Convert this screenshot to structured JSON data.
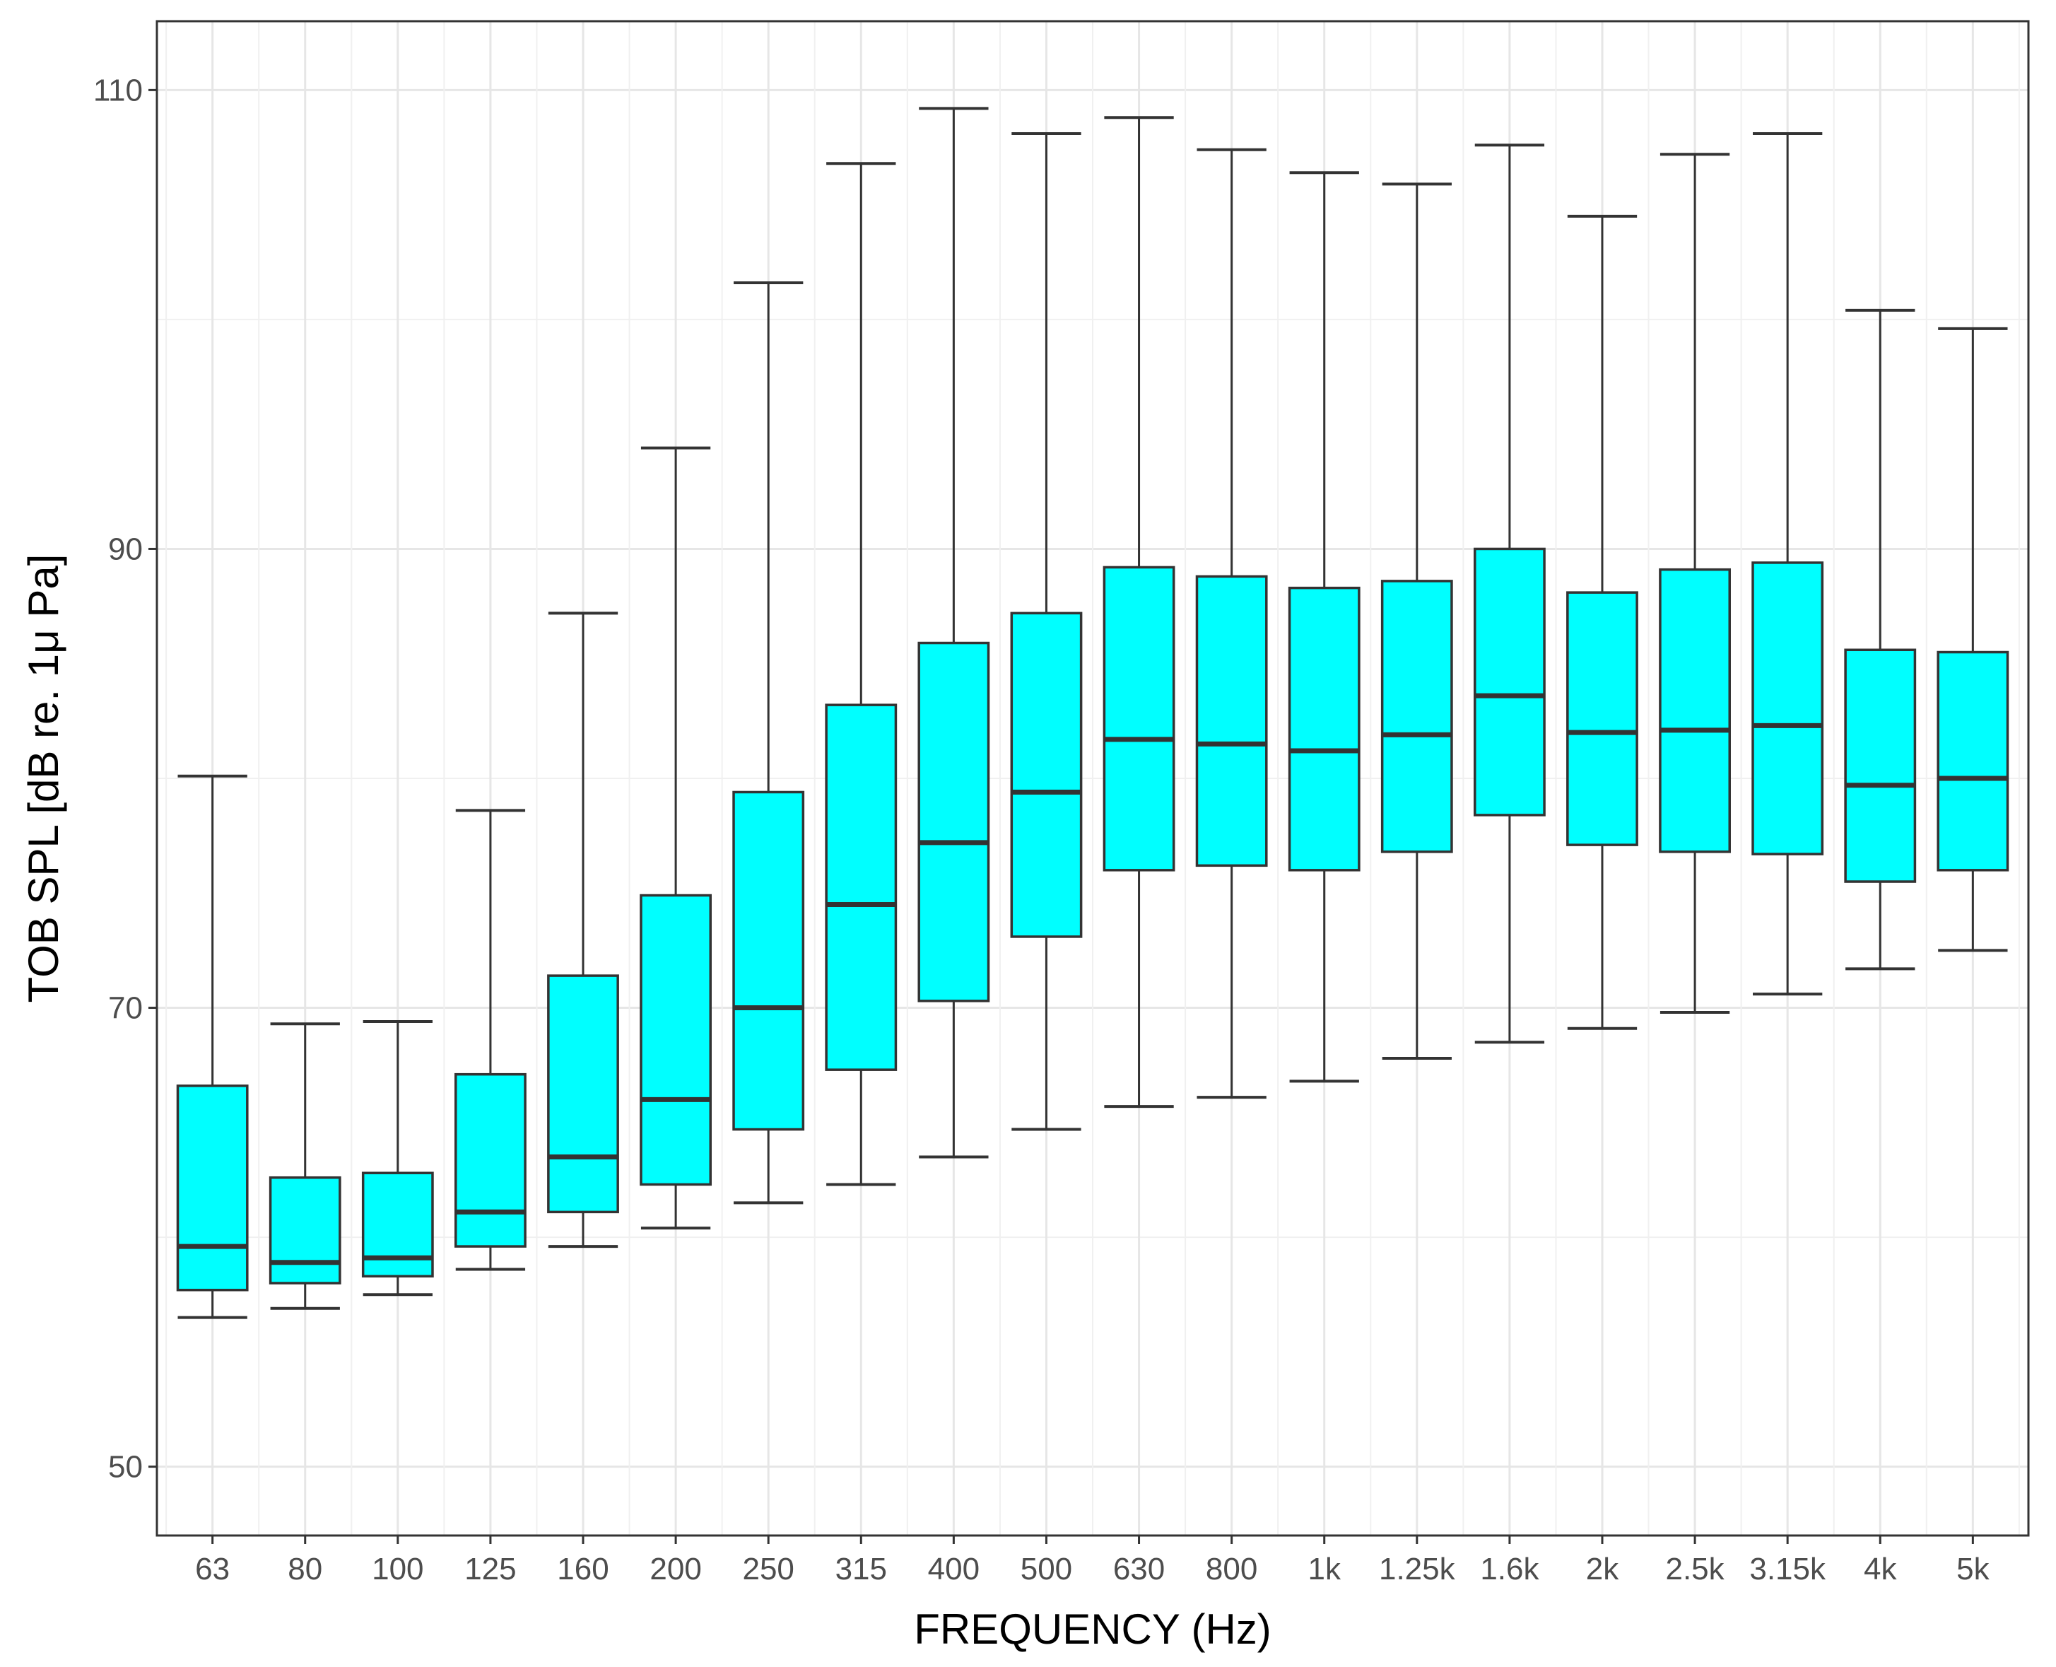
{
  "chart_data": {
    "type": "boxplot",
    "title": "",
    "xlabel": "FREQUENCY (Hz)",
    "ylabel": "TOB SPL [dB re. 1μ Pa]",
    "ylim": [
      47,
      113
    ],
    "yticks": [
      50,
      70,
      90,
      110
    ],
    "grid": true,
    "legend": "none",
    "fill_color": "#00FFFF",
    "stroke_color": "#333333",
    "categories": [
      "63",
      "80",
      "100",
      "125",
      "160",
      "200",
      "250",
      "315",
      "400",
      "500",
      "630",
      "800",
      "1k",
      "1.25k",
      "1.6k",
      "2k",
      "2.5k",
      "3.15k",
      "4k",
      "5k"
    ],
    "boxes": [
      {
        "category": "63",
        "min": 56.5,
        "q1": 57.7,
        "median": 59.6,
        "q3": 66.6,
        "max": 80.1
      },
      {
        "category": "80",
        "min": 56.9,
        "q1": 58.0,
        "median": 58.9,
        "q3": 62.6,
        "max": 69.3
      },
      {
        "category": "100",
        "min": 57.5,
        "q1": 58.3,
        "median": 59.1,
        "q3": 62.8,
        "max": 69.4
      },
      {
        "category": "125",
        "min": 58.6,
        "q1": 59.6,
        "median": 61.1,
        "q3": 67.1,
        "max": 78.6
      },
      {
        "category": "160",
        "min": 59.6,
        "q1": 61.1,
        "median": 63.5,
        "q3": 71.4,
        "max": 87.2
      },
      {
        "category": "200",
        "min": 60.4,
        "q1": 62.3,
        "median": 66.0,
        "q3": 74.9,
        "max": 94.4
      },
      {
        "category": "250",
        "min": 61.5,
        "q1": 64.7,
        "median": 70.0,
        "q3": 79.4,
        "max": 101.6
      },
      {
        "category": "315",
        "min": 62.3,
        "q1": 67.3,
        "median": 74.5,
        "q3": 83.2,
        "max": 106.8
      },
      {
        "category": "400",
        "min": 63.5,
        "q1": 70.3,
        "median": 77.2,
        "q3": 85.9,
        "max": 109.2
      },
      {
        "category": "500",
        "min": 64.7,
        "q1": 73.1,
        "median": 79.4,
        "q3": 87.2,
        "max": 108.1
      },
      {
        "category": "630",
        "min": 65.7,
        "q1": 76.0,
        "median": 81.7,
        "q3": 89.2,
        "max": 108.8
      },
      {
        "category": "800",
        "min": 66.1,
        "q1": 76.2,
        "median": 81.5,
        "q3": 88.8,
        "max": 107.4
      },
      {
        "category": "1k",
        "min": 66.8,
        "q1": 76.0,
        "median": 81.2,
        "q3": 88.3,
        "max": 106.4
      },
      {
        "category": "1.25k",
        "min": 67.8,
        "q1": 76.8,
        "median": 81.9,
        "q3": 88.6,
        "max": 105.9
      },
      {
        "category": "1.6k",
        "min": 68.5,
        "q1": 78.4,
        "median": 83.6,
        "q3": 90.0,
        "max": 107.6
      },
      {
        "category": "2k",
        "min": 69.1,
        "q1": 77.1,
        "median": 82.0,
        "q3": 88.1,
        "max": 104.5
      },
      {
        "category": "2.5k",
        "min": 69.8,
        "q1": 76.8,
        "median": 82.1,
        "q3": 89.1,
        "max": 107.2
      },
      {
        "category": "3.15k",
        "min": 70.6,
        "q1": 76.7,
        "median": 82.3,
        "q3": 89.4,
        "max": 108.1
      },
      {
        "category": "4k",
        "min": 71.7,
        "q1": 75.5,
        "median": 79.7,
        "q3": 85.6,
        "max": 100.4
      },
      {
        "category": "5k",
        "min": 72.5,
        "q1": 76.0,
        "median": 80.0,
        "q3": 85.5,
        "max": 99.6
      }
    ]
  }
}
